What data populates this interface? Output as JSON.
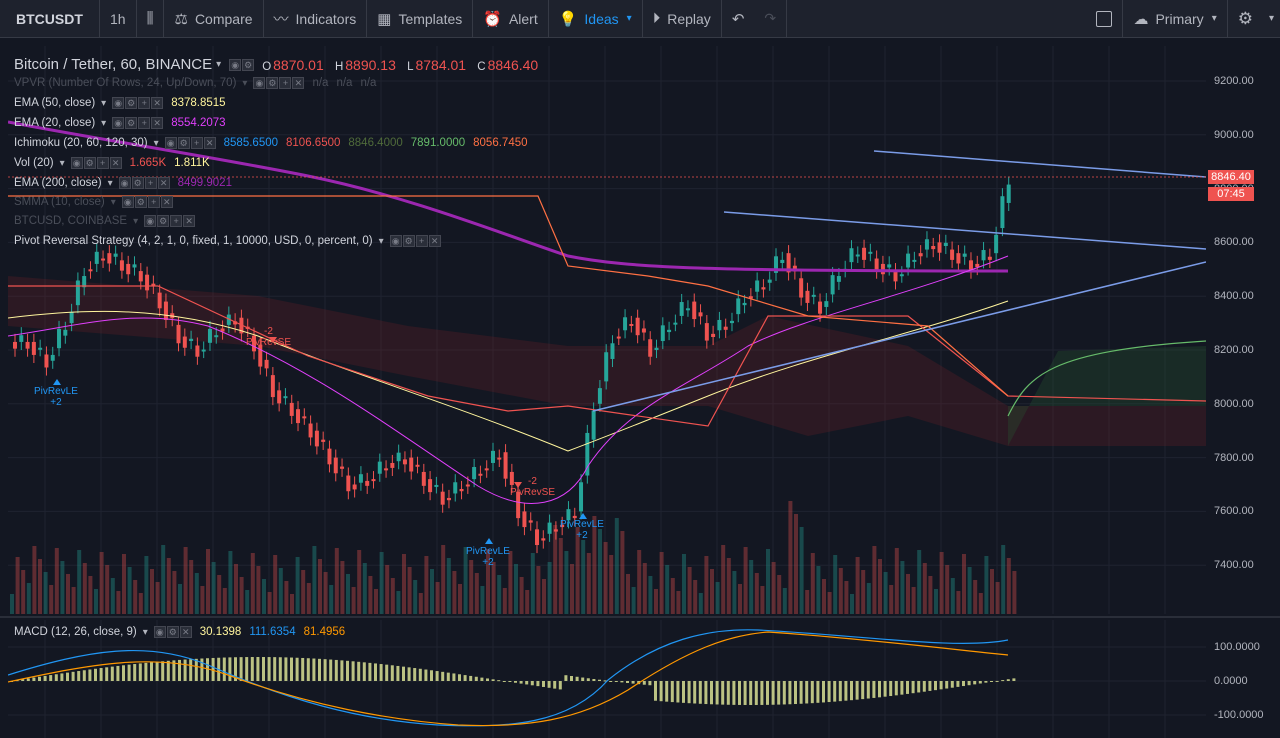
{
  "toolbar": {
    "symbol": "BTCUSDT",
    "interval": "1h",
    "compare": "Compare",
    "indicators": "Indicators",
    "templates": "Templates",
    "alert": "Alert",
    "ideas": "Ideas",
    "replay": "Replay",
    "layout": "Primary"
  },
  "header": {
    "title": "Bitcoin / Tether, 60, BINANCE",
    "open_label": "O",
    "open": "8870.01",
    "high_label": "H",
    "high": "8890.13",
    "low_label": "L",
    "low": "8784.01",
    "close_label": "C",
    "close": "8846.40"
  },
  "indicators": [
    {
      "name": "VPVR (Number Of Rows, 24, Up/Down, 70)",
      "values": [
        "n/a",
        "n/a",
        "n/a"
      ],
      "colors": [
        "#4a4e59",
        "#4a4e59",
        "#4a4e59"
      ],
      "dim": true
    },
    {
      "name": "EMA (50, close)",
      "values": [
        "8378.8515"
      ],
      "colors": [
        "#fff59d"
      ]
    },
    {
      "name": "EMA (20, close)",
      "values": [
        "8554.2073"
      ],
      "colors": [
        "#e040fb"
      ]
    },
    {
      "name": "Ichimoku (20, 60, 120, 30)",
      "values": [
        "8585.6500",
        "8106.6500",
        "8846.4000",
        "7891.0000",
        "8056.7450"
      ],
      "colors": [
        "#2196f3",
        "#ef5350",
        "#4f6b3a",
        "#66bb6a",
        "#ff7043"
      ]
    },
    {
      "name": "Vol (20)",
      "values": [
        "1.665K",
        "1.811K"
      ],
      "colors": [
        "#ef5350",
        "#fff59d"
      ]
    },
    {
      "name": "EMA (200, close)",
      "values": [
        "8499.9021"
      ],
      "colors": [
        "#9c27b0"
      ]
    },
    {
      "name": "SMMA (10, close)",
      "values": [],
      "colors": [],
      "dim": true
    },
    {
      "name": "BTCUSD, COINBASE",
      "values": [],
      "colors": [],
      "dim": true
    },
    {
      "name": "Pivot Reversal Strategy (4, 2, 1, 0, fixed, 1, 10000, USD, 0, percent, 0)",
      "values": [],
      "colors": []
    }
  ],
  "price_axis": [
    "9200.00",
    "9000.00",
    "8800.00",
    "8600.00",
    "8400.00",
    "8200.00",
    "8000.00",
    "7800.00",
    "7600.00",
    "7400.00"
  ],
  "last_price": "8846.40",
  "countdown": "07:45",
  "signals": [
    {
      "label": "PivRevLE",
      "qty": "+2",
      "type": "long"
    },
    {
      "label": "PivRevLE",
      "qty": "+2",
      "type": "long"
    },
    {
      "label": "PivRevLE",
      "qty": "+2",
      "type": "long"
    },
    {
      "label": "PivRevSE",
      "qty": "-2",
      "type": "short"
    },
    {
      "label": "PivRevSE",
      "qty": "-2",
      "type": "short"
    }
  ],
  "macd": {
    "name": "MACD (12, 26, close, 9)",
    "values": [
      "30.1398",
      "111.6354",
      "81.4956"
    ],
    "colors": [
      "#fff59d",
      "#2196f3",
      "#ff9800"
    ],
    "axis": [
      "100.0000",
      "0.0000",
      "-100.0000"
    ]
  },
  "colors": {
    "up": "#26a69a",
    "down": "#ef5350",
    "ema200": "#9c27b0",
    "trendline": "#7b9ce8",
    "accent": "#2196f3"
  }
}
